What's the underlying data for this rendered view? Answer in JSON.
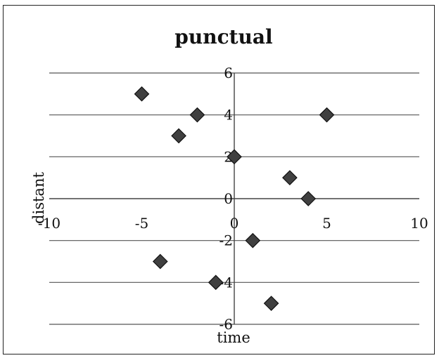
{
  "chart_data": {
    "type": "scatter",
    "title": "punctual",
    "xlabel": "time",
    "ylabel": "distant",
    "xlim": [
      -10,
      10
    ],
    "ylim": [
      -6,
      6
    ],
    "x_ticks": [
      -10,
      -5,
      0,
      5,
      10
    ],
    "y_ticks": [
      -6,
      -4,
      -2,
      0,
      2,
      4,
      6
    ],
    "x_tick_labels": [
      "-10",
      "-5",
      "0",
      "5",
      "10"
    ],
    "y_tick_labels": [
      "-6",
      "-4",
      "-2",
      "0",
      "2",
      "4",
      "6"
    ],
    "grid": "horizontal",
    "legend": "none",
    "marker": "diamond",
    "marker_color": "#404040",
    "series": [
      {
        "points": [
          {
            "x": -5,
            "y": 5
          },
          {
            "x": -2,
            "y": 4
          },
          {
            "x": -3,
            "y": 3
          },
          {
            "x": 5,
            "y": 4
          },
          {
            "x": 0,
            "y": 2
          },
          {
            "x": 3,
            "y": 1
          },
          {
            "x": 4,
            "y": 0
          },
          {
            "x": 1,
            "y": -2
          },
          {
            "x": -4,
            "y": -3
          },
          {
            "x": -1,
            "y": -4
          },
          {
            "x": 2,
            "y": -5
          }
        ]
      }
    ]
  }
}
